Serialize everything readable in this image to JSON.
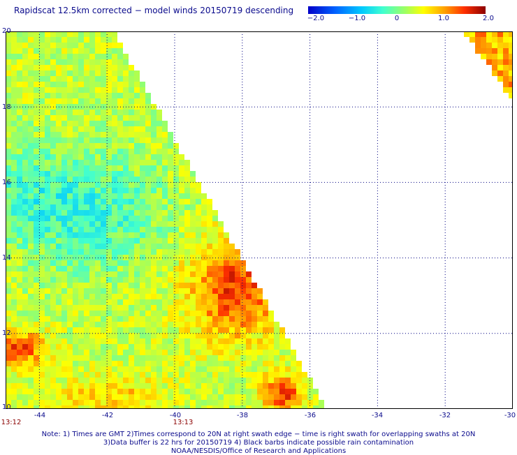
{
  "title": "Rapidscat 12.5km corrected − model winds 20150719 descending",
  "colorbar": {
    "ticks": [
      "−2.0",
      "−1.0",
      "0",
      "1.0",
      "2.0"
    ],
    "tick_values": [
      -2.0,
      -1.0,
      0,
      1.0,
      2.0
    ],
    "range": [
      -2.0,
      2.0
    ],
    "colors": [
      "#0000c8",
      "#0060ff",
      "#00c8ff",
      "#40ffd0",
      "#a0ff60",
      "#ffff00",
      "#ffa000",
      "#ff3000",
      "#8c0000"
    ]
  },
  "map": {
    "lon_range": [
      -45,
      -30
    ],
    "lat_range": [
      10,
      20
    ],
    "lon_ticks": [
      "-44",
      "-42",
      "-40",
      "-38",
      "-36",
      "-34",
      "-32",
      "-30"
    ],
    "lat_ticks": [
      "20",
      "18",
      "16",
      "14",
      "12",
      "10"
    ],
    "grid": true,
    "time_labels": [
      {
        "text": "13:12",
        "lon": -45
      },
      {
        "text": "13:13",
        "lon": -40
      }
    ]
  },
  "notes": [
    "Note: 1) Times are GMT 2)Times correspond to 20N at right swath edge − time is right swath for overlapping swaths at 20N",
    "3)Data buffer is 22 hrs for 20150719 4) Black barbs indicate possible rain contamination",
    "NOAA/NESDIS/Office of Research and Applications"
  ]
}
